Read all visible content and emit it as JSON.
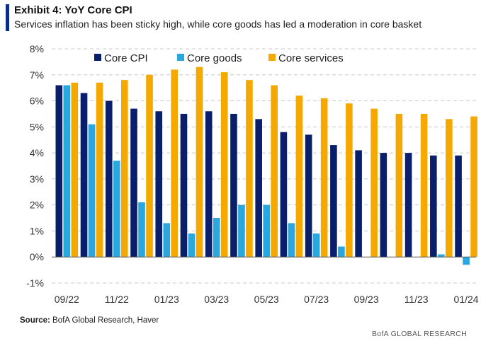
{
  "header": {
    "title": "Exhibit 4: YoY Core CPI",
    "subtitle": "Services inflation has been sticky high, while core goods has led a moderation in core basket"
  },
  "footer": {
    "source_label": "Source:",
    "source_text": " BofA Global Research, Haver",
    "brand": "BofA GLOBAL RESEARCH"
  },
  "colors": {
    "core_cpi": "#0a1f6b",
    "core_goods": "#29a8e0",
    "core_services": "#f5a800",
    "grid": "#c8c8c8"
  },
  "chart_data": {
    "type": "bar",
    "title": "YoY Core CPI",
    "xlabel": "",
    "ylabel": "",
    "ylim": [
      -1,
      8
    ],
    "ytick_step": 1,
    "ytick_labels": [
      "-1%",
      "0%",
      "1%",
      "2%",
      "3%",
      "4%",
      "5%",
      "6%",
      "7%",
      "8%"
    ],
    "grid": true,
    "legend_position": "top",
    "categories": [
      "09/22",
      "10/22",
      "11/22",
      "12/22",
      "01/23",
      "02/23",
      "03/23",
      "04/23",
      "05/23",
      "06/23",
      "07/23",
      "08/23",
      "09/23",
      "10/23",
      "11/23",
      "12/23",
      "01/24"
    ],
    "x_tick_labels": [
      "09/22",
      "11/22",
      "01/23",
      "03/23",
      "05/23",
      "07/23",
      "09/23",
      "11/23",
      "01/24"
    ],
    "series": [
      {
        "name": "Core CPI",
        "color_key": "core_cpi",
        "values": [
          6.6,
          6.3,
          6.0,
          5.7,
          5.6,
          5.5,
          5.6,
          5.5,
          5.3,
          4.8,
          4.7,
          4.3,
          4.1,
          4.0,
          4.0,
          3.9,
          3.9
        ]
      },
      {
        "name": "Core goods",
        "color_key": "core_goods",
        "values": [
          6.6,
          5.1,
          3.7,
          2.1,
          1.3,
          0.9,
          1.5,
          2.0,
          2.0,
          1.3,
          0.9,
          0.4,
          0.0,
          0.0,
          0.0,
          0.1,
          -0.3
        ]
      },
      {
        "name": "Core services",
        "color_key": "core_services",
        "values": [
          6.7,
          6.7,
          6.8,
          7.0,
          7.2,
          7.3,
          7.1,
          6.8,
          6.6,
          6.2,
          6.1,
          5.9,
          5.7,
          5.5,
          5.5,
          5.3,
          5.4
        ]
      }
    ]
  }
}
